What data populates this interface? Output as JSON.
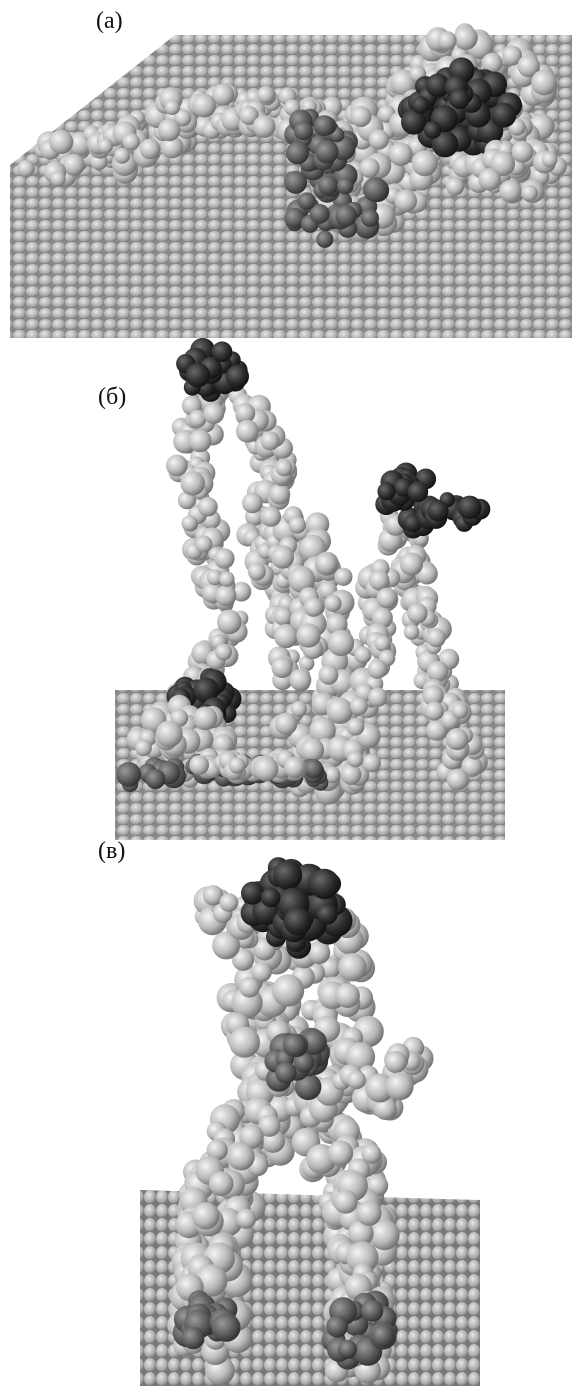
{
  "panels": [
    {
      "label": "(а)"
    },
    {
      "label": "(б)"
    },
    {
      "label": "(в)"
    }
  ]
}
